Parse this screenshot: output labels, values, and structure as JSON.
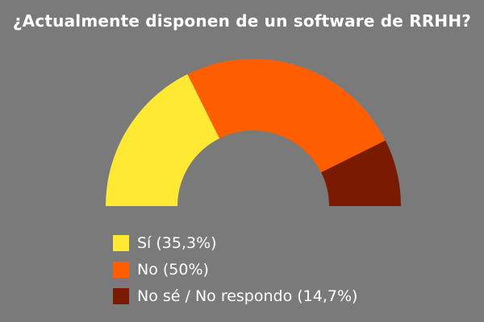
{
  "chart_data": {
    "type": "pie",
    "variant": "semi-donut",
    "title": "¿Actualmente disponen de un software de RRHH?",
    "slices": [
      {
        "label": "Sí",
        "value": 35.3,
        "legend": "Sí (35,3%)",
        "color": "#ffe933"
      },
      {
        "label": "No",
        "value": 50,
        "legend": "No (50%)",
        "color": "#ff5e00"
      },
      {
        "label": "No sé / No respondo",
        "value": 14.7,
        "legend": "No sé / No respondo (14,7%)",
        "color": "#7a1a00"
      }
    ],
    "legend_position": "bottom-left"
  },
  "colors": {
    "background": "#7a7a7a",
    "text": "#ffffff"
  }
}
